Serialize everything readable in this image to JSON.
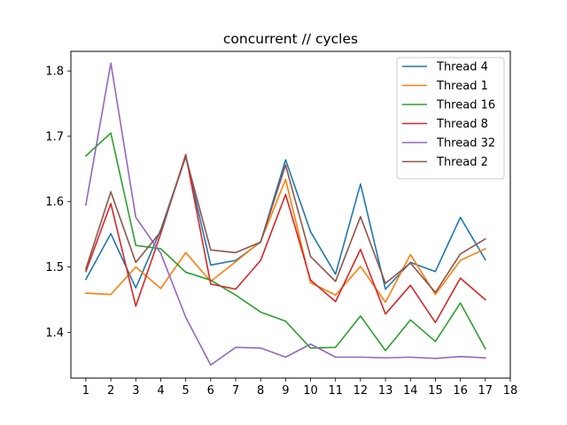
{
  "chart_data": {
    "type": "line",
    "title": "concurrent // cycles",
    "xlabel": "",
    "ylabel": "",
    "x": [
      1,
      2,
      3,
      4,
      5,
      6,
      7,
      8,
      9,
      10,
      11,
      12,
      13,
      14,
      15,
      16,
      17
    ],
    "xticks": [
      1,
      2,
      3,
      4,
      5,
      6,
      7,
      8,
      9,
      10,
      11,
      12,
      13,
      14,
      15,
      16,
      17,
      18
    ],
    "yticks": [
      1.4,
      1.5,
      1.6,
      1.7,
      1.8
    ],
    "xlim": [
      0.4,
      18.0
    ],
    "ylim": [
      1.33,
      1.83
    ],
    "grid": false,
    "legend_position": "top-right",
    "series": [
      {
        "name": "Thread 4",
        "color": "#1f77b4",
        "values": [
          1.481,
          1.551,
          1.468,
          1.557,
          1.669,
          1.503,
          1.51,
          1.538,
          1.664,
          1.554,
          1.489,
          1.627,
          1.466,
          1.507,
          1.493,
          1.576,
          1.511
        ]
      },
      {
        "name": "Thread 1",
        "color": "#ff7f0e",
        "values": [
          1.46,
          1.458,
          1.5,
          1.467,
          1.522,
          1.478,
          1.508,
          1.539,
          1.634,
          1.476,
          1.457,
          1.501,
          1.446,
          1.519,
          1.458,
          1.51,
          1.528
        ]
      },
      {
        "name": "Thread 16",
        "color": "#2ca02c",
        "values": [
          1.67,
          1.705,
          1.533,
          1.528,
          1.492,
          1.48,
          1.457,
          1.431,
          1.417,
          1.376,
          1.377,
          1.425,
          1.372,
          1.419,
          1.386,
          1.445,
          1.375
        ]
      },
      {
        "name": "Thread 8",
        "color": "#d62728",
        "values": [
          1.493,
          1.597,
          1.44,
          1.551,
          1.672,
          1.474,
          1.466,
          1.51,
          1.611,
          1.48,
          1.447,
          1.527,
          1.428,
          1.472,
          1.415,
          1.483,
          1.45
        ]
      },
      {
        "name": "Thread 32",
        "color": "#9467bd",
        "values": [
          1.595,
          1.812,
          1.576,
          1.521,
          1.423,
          1.35,
          1.377,
          1.376,
          1.362,
          1.382,
          1.362,
          1.362,
          1.361,
          1.362,
          1.36,
          1.363,
          1.361
        ]
      },
      {
        "name": "Thread 2",
        "color": "#8c564b",
        "values": [
          1.497,
          1.615,
          1.507,
          1.554,
          1.669,
          1.526,
          1.522,
          1.538,
          1.656,
          1.516,
          1.478,
          1.577,
          1.475,
          1.506,
          1.461,
          1.52,
          1.543
        ]
      }
    ]
  }
}
